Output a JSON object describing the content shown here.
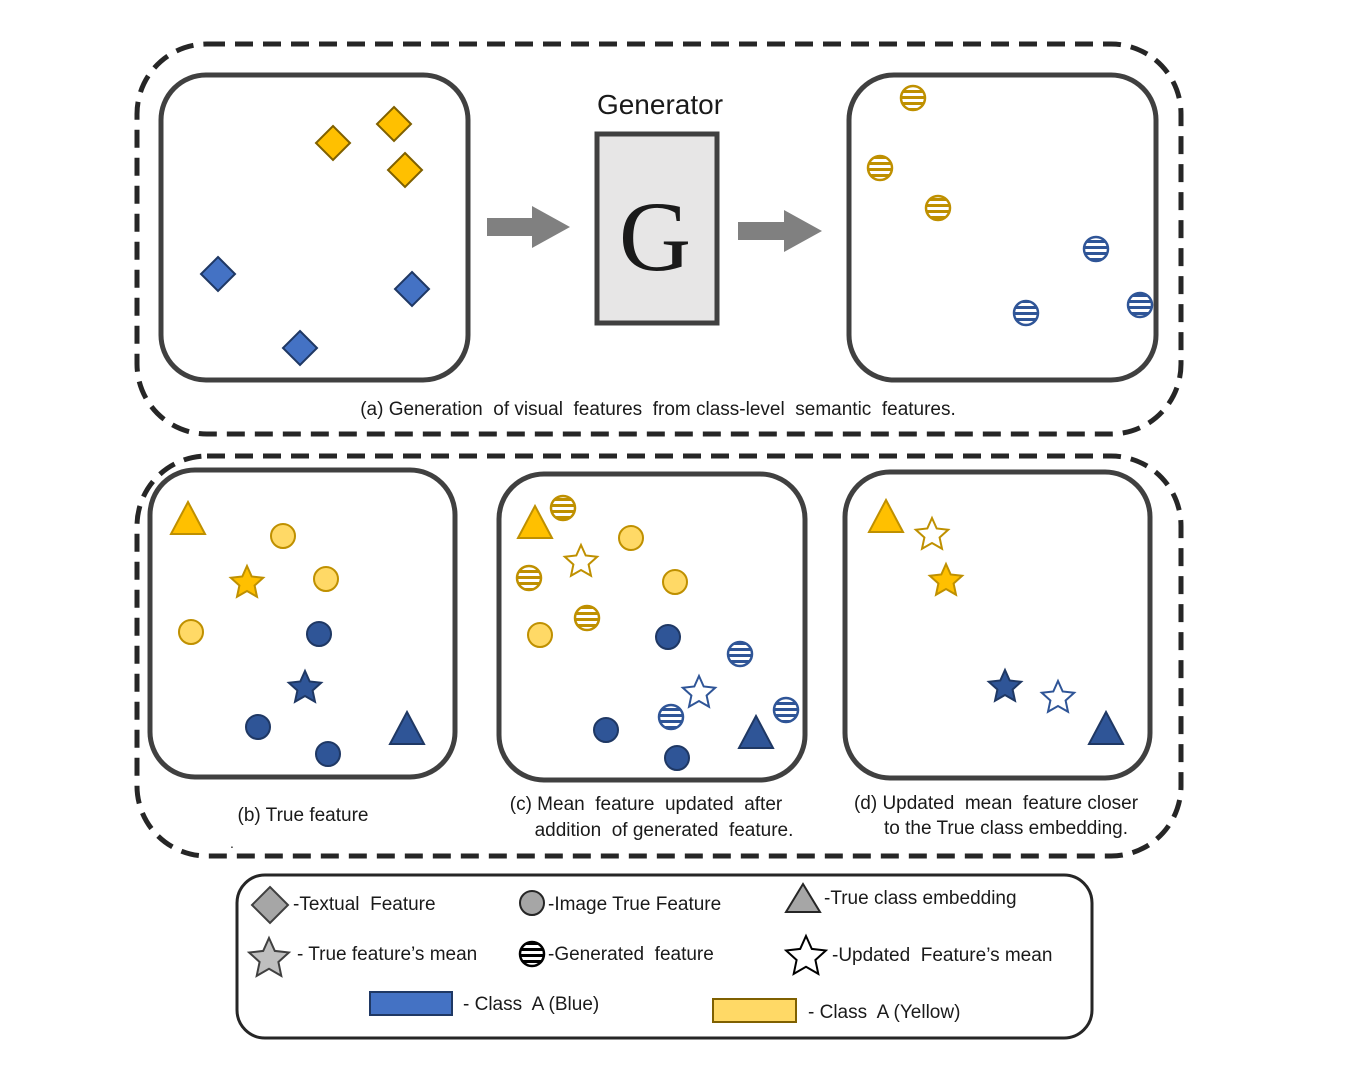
{
  "colors": {
    "blue": "#4472c4",
    "blue_dark": "#2f5597",
    "yellow": "#ffc000",
    "yellow_dark": "#bf9000",
    "yellow_light": "#ffd966",
    "gray": "#bfbfbf",
    "arrow": "#808080",
    "frame": "#404040"
  },
  "section_a": {
    "generator_title": "Generator",
    "generator_letter": "G",
    "caption": "(a) Generation  of visual  features  from class-level  semantic  features."
  },
  "section_b": {
    "panel_b_caption": "(b) True feature",
    "panel_b_mark": ".",
    "panel_c_caption_line1": "(c) Mean  feature  updated  after",
    "panel_c_caption_line2": "addition  of generated  feature.",
    "panel_d_caption_line1": "(d) Updated  mean  feature closer",
    "panel_d_caption_line2": "to the True class embedding."
  },
  "legend": {
    "textual_feature": "-Textual  Feature",
    "image_true_feature": "-Image True Feature",
    "true_class_embedding": "-True class embedding",
    "true_features_mean": "- True feature’s mean",
    "generated_feature": "-Generated  feature",
    "updated_features_mean": "-Updated  Feature’s mean",
    "class_blue": "- Class  A (Blue)",
    "class_yellow": "- Class  A (Yellow)"
  }
}
